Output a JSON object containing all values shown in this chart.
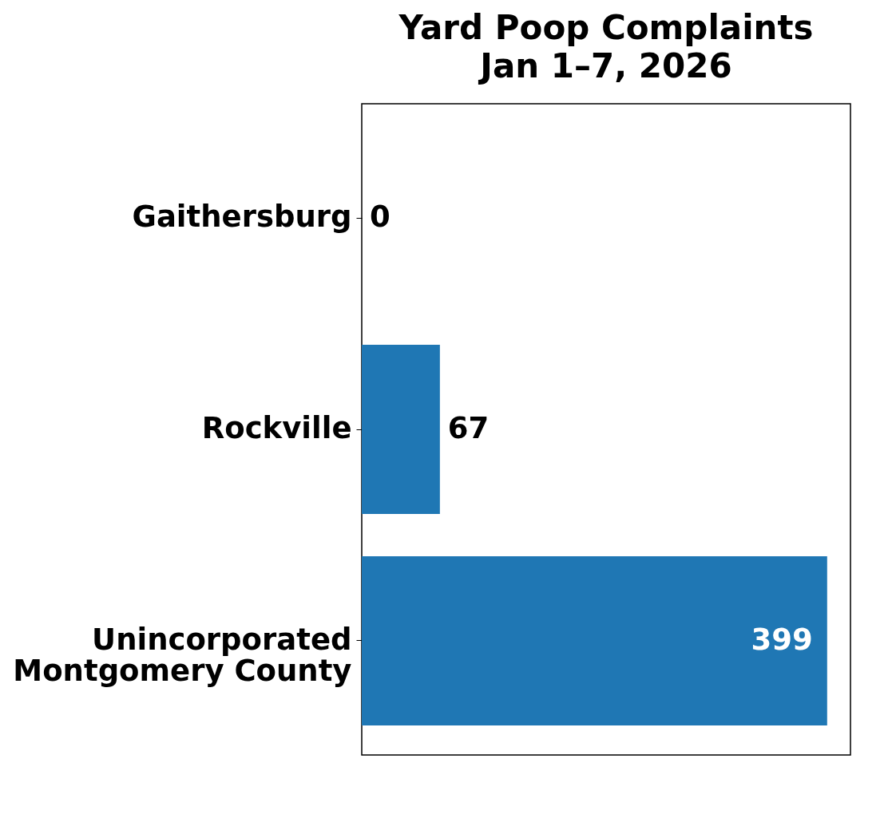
{
  "chart_data": {
    "type": "bar",
    "orientation": "horizontal",
    "title": [
      "Yard Poop Complaints",
      "Jan 1–7, 2026"
    ],
    "categories": [
      "Gaithersburg",
      "Rockville",
      "Unincorporated Montgomery County"
    ],
    "values": [
      0,
      67,
      399
    ],
    "color": "#1f77b4",
    "xlim": [
      0,
      419
    ],
    "data_labels": true,
    "tick_labels": "y",
    "grid": false
  }
}
